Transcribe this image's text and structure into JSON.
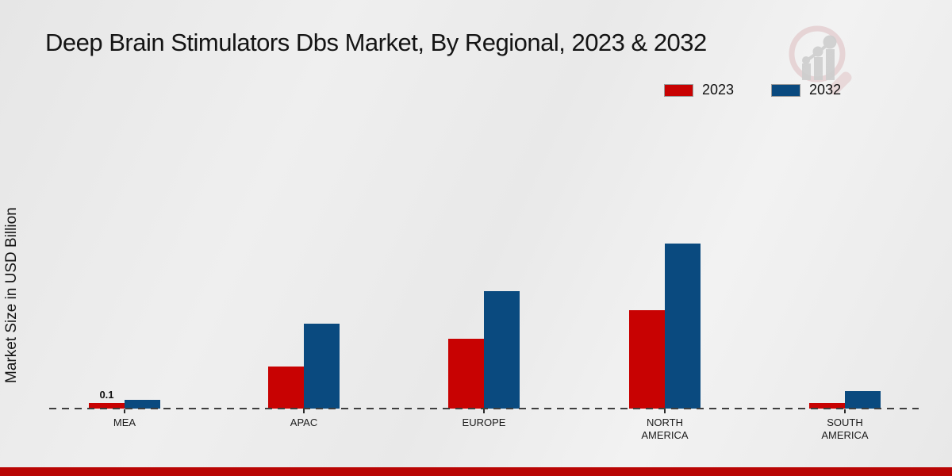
{
  "title": "Deep Brain Stimulators Dbs Market, By Regional, 2023 & 2032",
  "y_axis_label": "Market Size in USD Billion",
  "legend": [
    {
      "label": "2023",
      "color": "#c80202"
    },
    {
      "label": "2032",
      "color": "#0a4a7f"
    }
  ],
  "chart_data": {
    "type": "bar",
    "title": "Deep Brain Stimulators Dbs Market, By Regional, 2023 & 2032",
    "xlabel": "",
    "ylabel": "Market Size in USD Billion",
    "categories": [
      "MEA",
      "APAC",
      "EUROPE",
      "NORTH AMERICA",
      "SOUTH AMERICA"
    ],
    "series": [
      {
        "name": "2023",
        "color": "#c80202",
        "values": [
          0.1,
          0.76,
          1.27,
          1.79,
          0.1
        ]
      },
      {
        "name": "2032",
        "color": "#0a4a7f",
        "values": [
          0.16,
          1.55,
          2.14,
          3.0,
          0.32
        ]
      }
    ],
    "annotations": [
      {
        "category": "MEA",
        "series": "2023",
        "text": "0.1"
      }
    ],
    "ylim": [
      0,
      3.2
    ],
    "grid": false,
    "axis_line_style": "dashed",
    "legend_position": "top-right"
  },
  "watermark": {
    "icon": "magnifier-bar-chart-logo",
    "ring_color": "#dcbcbe",
    "glyph_color": "#c7c7c7"
  },
  "footer": {
    "color": "#b90504"
  }
}
